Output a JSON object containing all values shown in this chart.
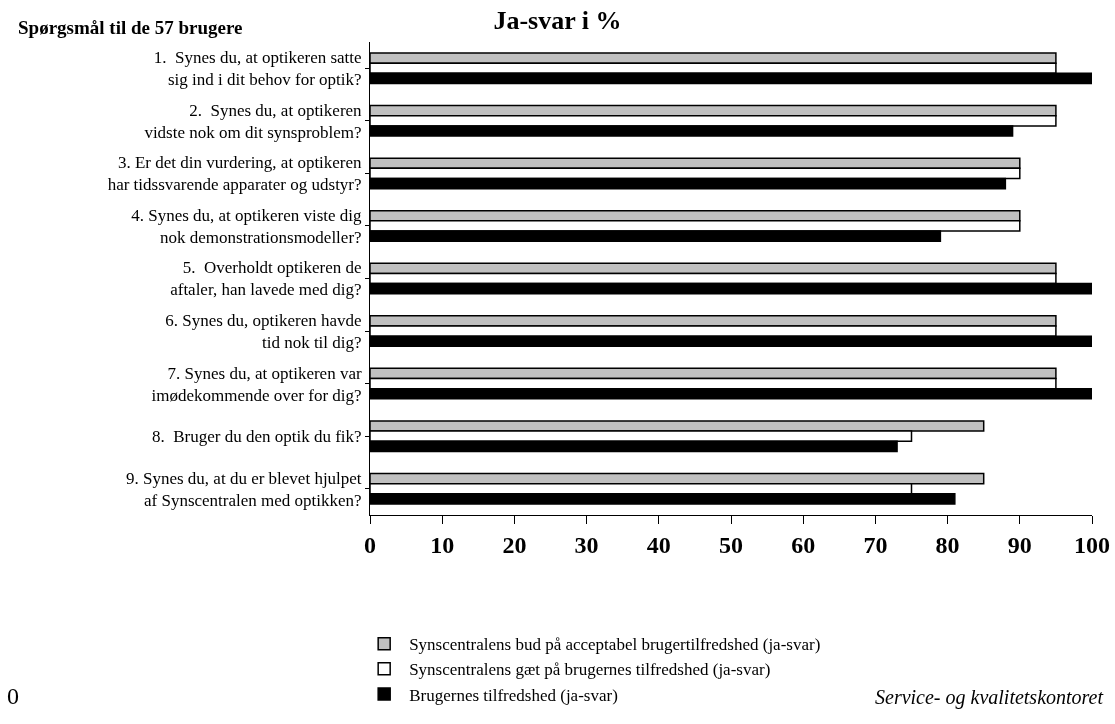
{
  "chart_data": {
    "type": "bar",
    "orientation": "horizontal",
    "title": "Ja-svar i %",
    "ylabel": "Spørgsmål til de 57 brugere",
    "categories": [
      "1.  Synes du, at optikeren satte\nsig ind i dit behov for optik?",
      "2.  Synes du, at optikeren\nvidste nok om dit synsproblem?",
      "3. Er det din vurdering, at optikeren\nhar tidssvarende apparater og udstyr?",
      "4. Synes du, at optikeren viste dig\nnok demonstrationsmodeller?",
      "5.  Overholdt optikeren de\naftaler, han lavede med dig?",
      "6. Synes du, optikeren havde\ntid nok til dig?",
      "7. Synes du, at optikeren var\nimødekommende over for dig?",
      "8.  Bruger du den optik du fik?",
      "9. Synes du, at du er blevet hjulpet\naf Synscentralen med optikken?"
    ],
    "series": [
      {
        "name": "Synscentralens bud på acceptabel brugertilfredshed (ja-svar)",
        "color": "#c0c0c0",
        "values": [
          95,
          95,
          90,
          90,
          95,
          95,
          95,
          85,
          85
        ]
      },
      {
        "name": "Synscentralens gæt på brugernes tilfredshed (ja-svar)",
        "color": "#ffffff",
        "values": [
          95,
          95,
          90,
          90,
          95,
          95,
          95,
          75,
          75
        ]
      },
      {
        "name": "Brugernes tilfredshed (ja-svar)",
        "color": "#000000",
        "values": [
          100,
          89,
          88,
          79,
          100,
          100,
          100,
          73,
          81
        ]
      }
    ],
    "xlim": [
      0,
      100
    ],
    "xticks": [
      0,
      10,
      20,
      30,
      40,
      50,
      60,
      70,
      80,
      90,
      100
    ],
    "grid": false,
    "legend": "bottom",
    "annotations": [
      "0",
      "Service- og kvalitetskontoret"
    ]
  }
}
